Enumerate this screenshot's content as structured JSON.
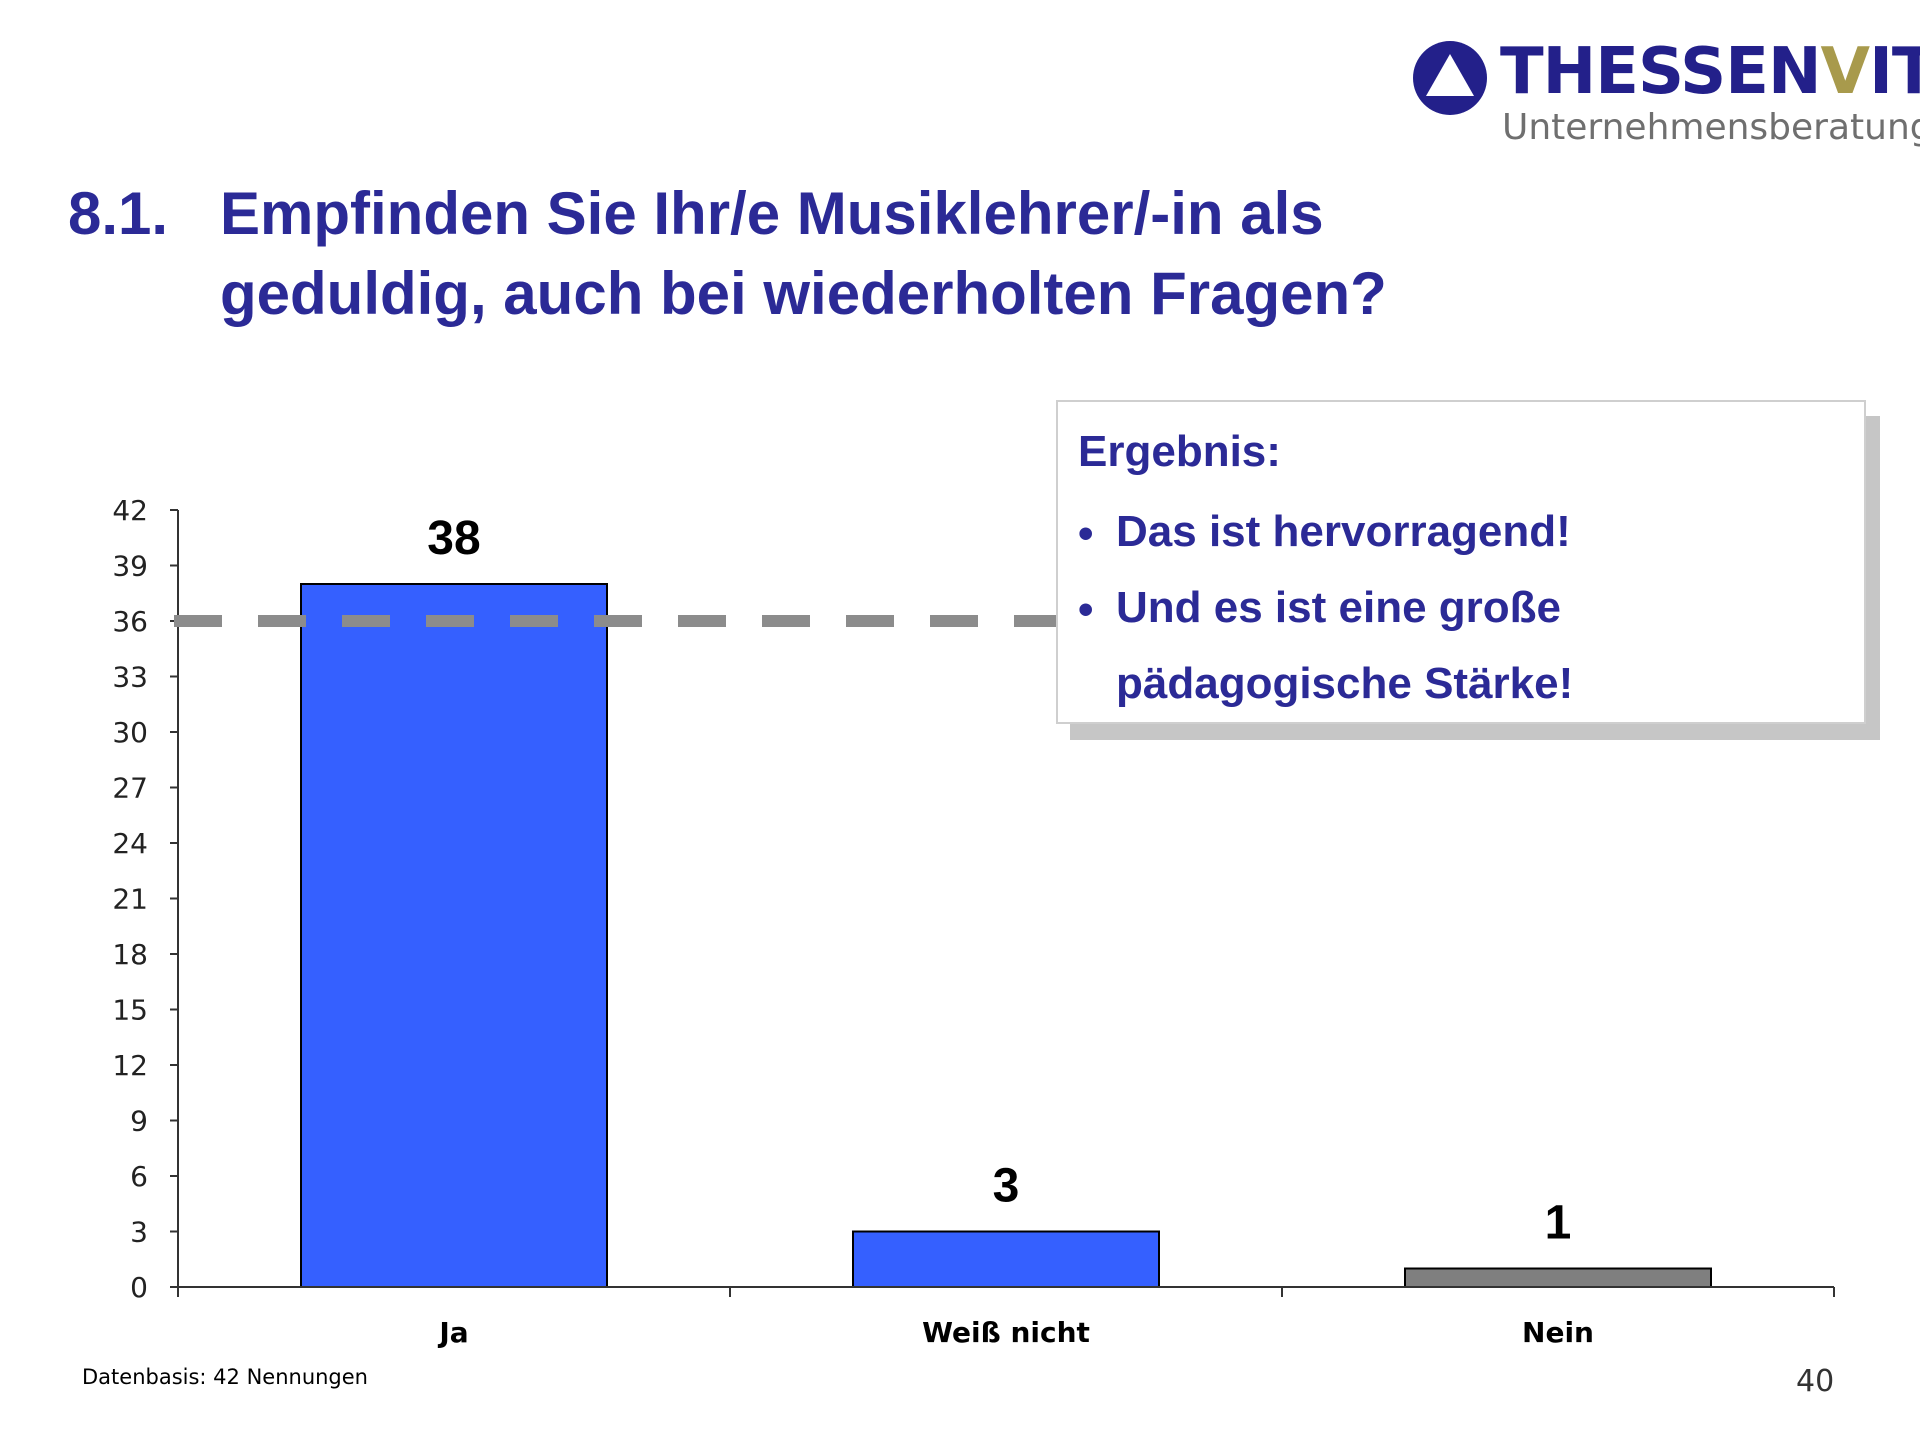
{
  "logo": {
    "wordmark_a": "THESSEN",
    "wordmark_accent": "V",
    "wordmark_b": "ITZ",
    "tagline": "Unternehmensberatung"
  },
  "title": {
    "number": "8.1.",
    "line1": "Empfinden Sie Ihr/e Musiklehrer/-in als",
    "line2": "geduldig, auch bei wiederholten Fragen?"
  },
  "result": {
    "heading": "Ergebnis:",
    "bullet_symbol": "•",
    "bullet1": "Das ist hervorragend!",
    "bullet2_line1": "Und es ist eine große",
    "bullet2_line2": "pädagogische Stärke!"
  },
  "chart_data": {
    "type": "bar",
    "categories": [
      "Ja",
      "Weiß nicht",
      "Nein"
    ],
    "values": [
      38,
      3,
      1
    ],
    "data_labels": [
      "38",
      "3",
      "1"
    ],
    "bar_colors": [
      "#3560ff",
      "#3560ff",
      "#7f7f7f"
    ],
    "ylim": [
      0,
      42
    ],
    "yticks": [
      0,
      3,
      6,
      9,
      12,
      15,
      18,
      21,
      24,
      27,
      30,
      33,
      36,
      39,
      42
    ],
    "reference_line": 36,
    "reference_line_color": "#8c8c8c",
    "title": "",
    "xlabel": "",
    "ylabel": ""
  },
  "footer": {
    "datenbasis": "Datenbasis: 42 Nennungen",
    "page_number": "40"
  }
}
